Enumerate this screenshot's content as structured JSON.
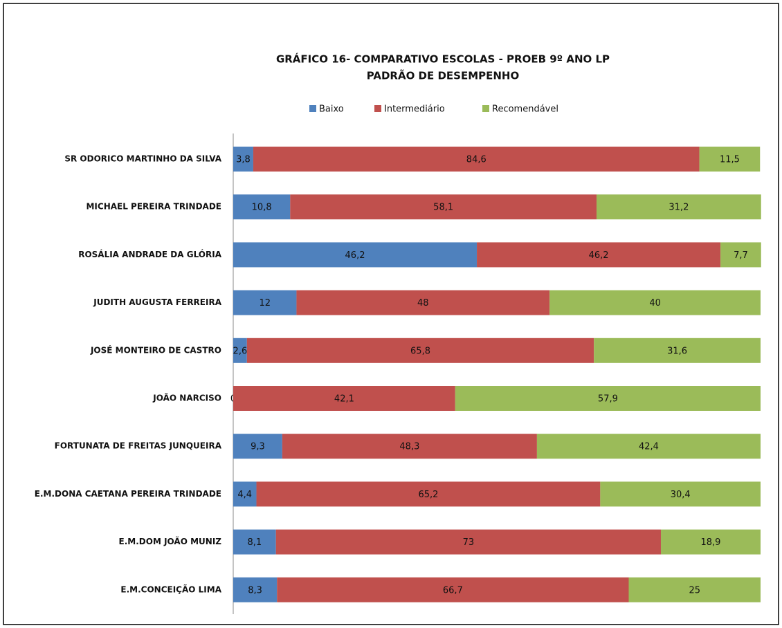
{
  "chart_data": {
    "type": "stacked_bar_horizontal",
    "title": "GRÁFICO 16-   COMPARATIVO ESCOLAS -  PROEB 9º ANO  LP",
    "subtitle": "PADRÃO DE DESEMPENHO",
    "categories": [
      "SR ODORICO MARTINHO DA SILVA",
      "MICHAEL PEREIRA TRINDADE",
      "ROSÁLIA ANDRADE DA GLÓRIA",
      "JUDITH AUGUSTA FERREIRA",
      "JOSÉ MONTEIRO DE CASTRO",
      "JOÃO NARCISO",
      "FORTUNATA DE FREITAS JUNQUEIRA",
      "E.M.DONA CAETANA PEREIRA TRINDADE",
      "E.M.DOM JOÃO MUNIZ",
      "E.M.CONCEIÇÃO LIMA"
    ],
    "series": [
      {
        "name": "Baixo",
        "color": "#4f81bd",
        "values": [
          3.8,
          10.8,
          46.2,
          12,
          2.6,
          0,
          9.3,
          4.4,
          8.1,
          8.3
        ],
        "value_labels": [
          "3,8",
          "10,8",
          "46,2",
          "12",
          "2,6",
          "0",
          "9,3",
          "4,4",
          "8,1",
          "8,3"
        ]
      },
      {
        "name": "Intermediário",
        "color": "#c0504d",
        "values": [
          84.6,
          58.1,
          46.2,
          48,
          65.8,
          42.1,
          48.3,
          65.2,
          73,
          66.7
        ],
        "value_labels": [
          "84,6",
          "58,1",
          "46,2",
          "48",
          "65,8",
          "42,1",
          "48,3",
          "65,2",
          "73",
          "66,7"
        ]
      },
      {
        "name": "Recomendável",
        "color": "#9bbb59",
        "values": [
          11.5,
          31.2,
          7.7,
          40,
          31.6,
          57.9,
          42.4,
          30.4,
          18.9,
          25
        ],
        "value_labels": [
          "11,5",
          "31,2",
          "7,7",
          "40",
          "31,6",
          "57,9",
          "42,4",
          "30,4",
          "18,9",
          "25"
        ]
      }
    ],
    "xlim": [
      0,
      100
    ]
  }
}
